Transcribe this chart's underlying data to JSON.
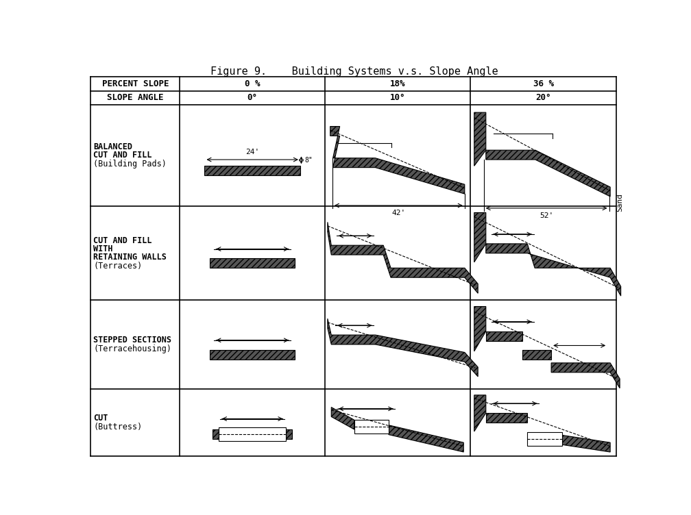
{
  "title": "Figure 9.    Building Systems v.s. Slope Angle",
  "hdr1": [
    "PERCENT SLOPE",
    "0 %",
    "18%",
    "36 %"
  ],
  "hdr2": [
    "SLOPE ANGLE",
    "0°",
    "10°",
    "20°"
  ],
  "row_labels": [
    [
      "BALANCED",
      "CUT AND FILL",
      "(Building Pads)"
    ],
    [
      "CUT AND FILL",
      "WITH",
      "RETAINING WALLS",
      "(Terraces)"
    ],
    [
      "STEPPED SECTIONS",
      "(Terracehousing)"
    ],
    [
      "CUT",
      "(Buttress)"
    ]
  ],
  "side_label": "Sand",
  "note_24": "24'",
  "note_42": "42'",
  "note_52": "52'",
  "note_8": "8\""
}
